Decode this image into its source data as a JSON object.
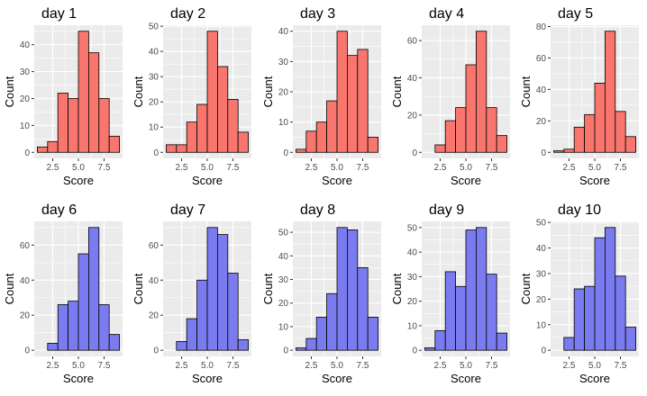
{
  "colors": {
    "red": "#F8766D",
    "blue": "#7B7BF0",
    "panel": "#EBEBEB",
    "grid": "#FFFFFF",
    "bar_outline": "#000000"
  },
  "chart_data": [
    {
      "type": "bar",
      "title": "day 1",
      "xlabel": "Score",
      "ylabel": "Count",
      "color": "red",
      "bins": [
        1.5,
        2.5,
        3.5,
        4.5,
        5.5,
        6.5,
        7.5,
        8.5
      ],
      "values": [
        2,
        4,
        22,
        20,
        45,
        37,
        20,
        6
      ],
      "xticks": [
        2.5,
        5.0,
        7.5
      ],
      "xtick_labels": [
        "2.5",
        "5.0",
        "7.5"
      ],
      "xlim": [
        0.7,
        9.3
      ],
      "yticks": [
        0,
        10,
        20,
        30,
        40
      ],
      "ylim": [
        -2.25,
        47.25
      ]
    },
    {
      "type": "bar",
      "title": "day 2",
      "xlabel": "Score",
      "ylabel": "Count",
      "color": "red",
      "bins": [
        1.5,
        2.5,
        3.5,
        4.5,
        5.5,
        6.5,
        7.5,
        8.5
      ],
      "values": [
        3,
        3,
        12,
        19,
        48,
        34,
        21,
        8
      ],
      "xticks": [
        2.5,
        5.0,
        7.5
      ],
      "xtick_labels": [
        "2.5",
        "5.0",
        "7.5"
      ],
      "xlim": [
        0.7,
        9.3
      ],
      "yticks": [
        0,
        10,
        20,
        30,
        40,
        50
      ],
      "ylim": [
        -2.4,
        50.4
      ]
    },
    {
      "type": "bar",
      "title": "day 3",
      "xlabel": "Score",
      "ylabel": "Count",
      "color": "red",
      "bins": [
        1.5,
        2.5,
        3.5,
        4.5,
        5.5,
        6.5,
        7.5,
        8.5
      ],
      "values": [
        1,
        7,
        10,
        17,
        40,
        32,
        34,
        5
      ],
      "xticks": [
        2.5,
        5.0,
        7.5
      ],
      "xtick_labels": [
        "2.5",
        "5.0",
        "7.5"
      ],
      "xlim": [
        0.7,
        9.3
      ],
      "yticks": [
        0,
        10,
        20,
        30,
        40
      ],
      "ylim": [
        -2.0,
        42.0
      ]
    },
    {
      "type": "bar",
      "title": "day 4",
      "xlabel": "Score",
      "ylabel": "Count",
      "color": "red",
      "bins": [
        1.5,
        2.5,
        3.5,
        4.5,
        5.5,
        6.5,
        7.5,
        8.5
      ],
      "values": [
        0,
        4,
        17,
        24,
        47,
        65,
        24,
        9
      ],
      "xticks": [
        2.5,
        5.0,
        7.5
      ],
      "xtick_labels": [
        "2.5",
        "5.0",
        "7.5"
      ],
      "xlim": [
        0.7,
        9.3
      ],
      "yticks": [
        0,
        20,
        40,
        60
      ],
      "ylim": [
        -3.25,
        68.25
      ]
    },
    {
      "type": "bar",
      "title": "day 5",
      "xlabel": "Score",
      "ylabel": "Count",
      "color": "red",
      "bins": [
        1.5,
        2.5,
        3.5,
        4.5,
        5.5,
        6.5,
        7.5,
        8.5
      ],
      "values": [
        1,
        2,
        16,
        24,
        44,
        77,
        26,
        10
      ],
      "xticks": [
        2.5,
        5.0,
        7.5
      ],
      "xtick_labels": [
        "2.5",
        "5.0",
        "7.5"
      ],
      "xlim": [
        0.7,
        9.3
      ],
      "yticks": [
        0,
        20,
        40,
        60,
        80
      ],
      "ylim": [
        -3.85,
        80.85
      ]
    },
    {
      "type": "bar",
      "title": "day 6",
      "xlabel": "Score",
      "ylabel": "Count",
      "color": "blue",
      "bins": [
        1.5,
        2.5,
        3.5,
        4.5,
        5.5,
        6.5,
        7.5,
        8.5
      ],
      "values": [
        0,
        4,
        26,
        28,
        55,
        70,
        26,
        9
      ],
      "xticks": [
        2.5,
        5.0,
        7.5
      ],
      "xtick_labels": [
        "2.5",
        "5.0",
        "7.5"
      ],
      "xlim": [
        0.7,
        9.3
      ],
      "yticks": [
        0,
        20,
        40,
        60
      ],
      "ylim": [
        -3.5,
        73.5
      ]
    },
    {
      "type": "bar",
      "title": "day 7",
      "xlabel": "Score",
      "ylabel": "Count",
      "color": "blue",
      "bins": [
        1.5,
        2.5,
        3.5,
        4.5,
        5.5,
        6.5,
        7.5,
        8.5
      ],
      "values": [
        0,
        5,
        18,
        40,
        70,
        66,
        44,
        6
      ],
      "xticks": [
        2.5,
        5.0,
        7.5
      ],
      "xtick_labels": [
        "2.5",
        "5.0",
        "7.5"
      ],
      "xlim": [
        0.7,
        9.3
      ],
      "yticks": [
        0,
        20,
        40,
        60
      ],
      "ylim": [
        -3.5,
        73.5
      ]
    },
    {
      "type": "bar",
      "title": "day 8",
      "xlabel": "Score",
      "ylabel": "Count",
      "color": "blue",
      "bins": [
        1.5,
        2.5,
        3.5,
        4.5,
        5.5,
        6.5,
        7.5,
        8.5
      ],
      "values": [
        1,
        5,
        14,
        24,
        52,
        51,
        35,
        14
      ],
      "xticks": [
        2.5,
        5.0,
        7.5
      ],
      "xtick_labels": [
        "2.5",
        "5.0",
        "7.5"
      ],
      "xlim": [
        0.7,
        9.3
      ],
      "yticks": [
        0,
        10,
        20,
        30,
        40,
        50
      ],
      "ylim": [
        -2.6,
        54.6
      ]
    },
    {
      "type": "bar",
      "title": "day 9",
      "xlabel": "Score",
      "ylabel": "Count",
      "color": "blue",
      "bins": [
        1.5,
        2.5,
        3.5,
        4.5,
        5.5,
        6.5,
        7.5,
        8.5
      ],
      "values": [
        1,
        8,
        32,
        26,
        49,
        50,
        31,
        7
      ],
      "xticks": [
        2.5,
        5.0,
        7.5
      ],
      "xtick_labels": [
        "2.5",
        "5.0",
        "7.5"
      ],
      "xlim": [
        0.7,
        9.3
      ],
      "yticks": [
        0,
        10,
        20,
        30,
        40,
        50
      ],
      "ylim": [
        -2.5,
        52.5
      ]
    },
    {
      "type": "bar",
      "title": "day 10",
      "xlabel": "Score",
      "ylabel": "Count",
      "color": "blue",
      "bins": [
        1.5,
        2.5,
        3.5,
        4.5,
        5.5,
        6.5,
        7.5,
        8.5
      ],
      "values": [
        0,
        5,
        24,
        25,
        44,
        48,
        29,
        9
      ],
      "xticks": [
        2.5,
        5.0,
        7.5
      ],
      "xtick_labels": [
        "2.5",
        "5.0",
        "7.5"
      ],
      "xlim": [
        0.7,
        9.3
      ],
      "yticks": [
        0,
        10,
        20,
        30,
        40,
        50
      ],
      "ylim": [
        -2.4,
        50.4
      ]
    }
  ]
}
